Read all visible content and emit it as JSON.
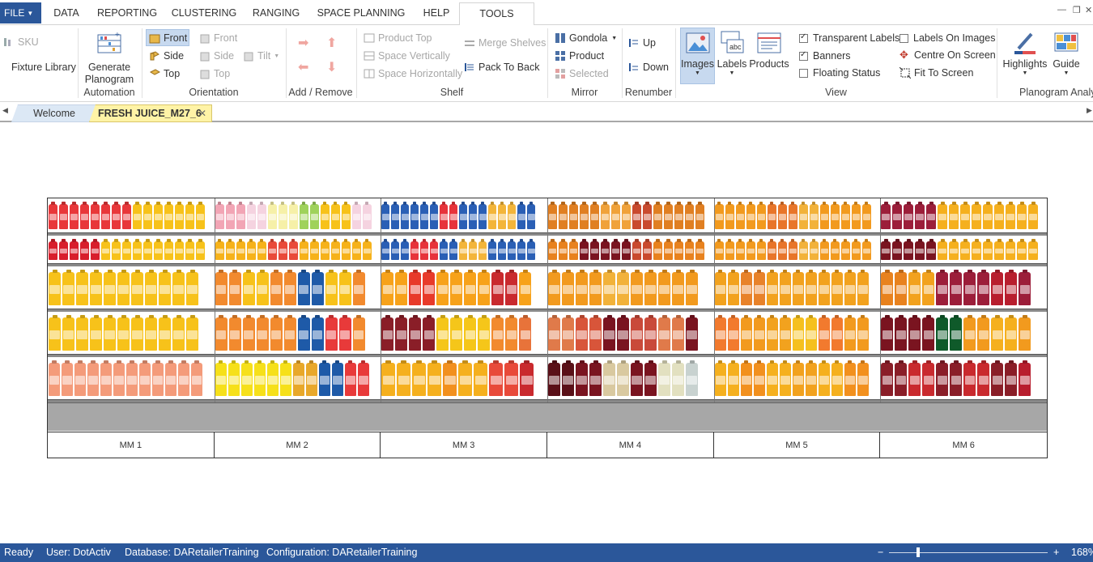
{
  "menu": {
    "file": "FILE",
    "tabs": [
      "DATA",
      "REPORTING",
      "CLUSTERING",
      "RANGING",
      "SPACE PLANNING",
      "HELP",
      "TOOLS"
    ],
    "active_tab": "TOOLS"
  },
  "ribbon": {
    "misc": {
      "sku": "SKU",
      "fixture_library": "Fixture Library"
    },
    "automation": {
      "generate_line1": "Generate",
      "generate_line2": "Planogram",
      "label": "Automation"
    },
    "orientation": {
      "front": "Front",
      "side": "Side",
      "top": "Top",
      "front2": "Front",
      "side2": "Side",
      "top2": "Top",
      "tilt": "Tilt",
      "label": "Orientation"
    },
    "add_remove": {
      "label": "Add / Remove"
    },
    "shelf": {
      "product_top": "Product Top",
      "space_vertically": "Space Vertically",
      "space_horizontally": "Space Horizontally",
      "merge_shelves": "Merge Shelves",
      "pack_to_back": "Pack To Back",
      "label": "Shelf"
    },
    "mirror": {
      "gondola": "Gondola",
      "product": "Product",
      "selected": "Selected",
      "label": "Mirror"
    },
    "renumber": {
      "up": "Up",
      "down": "Down",
      "label": "Renumber"
    },
    "view": {
      "images": "Images",
      "labels": "Labels",
      "products": "Products",
      "transparent_labels": "Transparent Labels",
      "banners": "Banners",
      "floating_status": "Floating Status",
      "labels_on_images": "Labels On Images",
      "centre_on_screen": "Centre On Screen",
      "fit_to_screen": "Fit To Screen",
      "transparent_labels_checked": true,
      "banners_checked": true,
      "floating_status_checked": false,
      "labels_on_images_checked": false,
      "label": "View"
    },
    "analysis": {
      "highlights": "Highlights",
      "guide": "Guide",
      "label": "Planogram Analy"
    }
  },
  "doc_tabs": {
    "welcome": "Welcome",
    "active": "FRESH JUICE_M27_6"
  },
  "planogram": {
    "bays": [
      "MM 1",
      "MM 2",
      "MM 3",
      "MM 4",
      "MM 5",
      "MM 6"
    ],
    "shelves": [
      {
        "palette": [
          [
            "#e8373a",
            "#e8373a",
            "#e8373a",
            "#f7c21a",
            "#f7c21a",
            "#f7c21a"
          ],
          [
            "#f2a5b5",
            "#f5d3e0",
            "#f6f0a8",
            "#9fd25b",
            "#f7c21a",
            "#f5d3e0"
          ],
          [
            "#2a5fb5",
            "#2a5fb5",
            "#e7333b",
            "#2a5fb5",
            "#f3b53a",
            "#2a5fb5"
          ],
          [
            "#e07f22",
            "#e07f22",
            "#f0a23a",
            "#c94a2e",
            "#e07f22",
            "#e07f22"
          ],
          [
            "#f29a1e",
            "#f29a1e",
            "#e8752a",
            "#f2b23a",
            "#f29a1e",
            "#f29a1e"
          ],
          [
            "#9c1e3a",
            "#9c1e3a",
            "#f5b01e",
            "#f5b01e",
            "#f5b01e",
            "#f5b01e"
          ]
        ]
      },
      {
        "palette": [
          [
            "#d81e2c",
            "#d81e2c",
            "#f7c21a",
            "#f7c21a",
            "#f7c21a",
            "#f7c21a"
          ],
          [
            "#f6b21a",
            "#f6b21a",
            "#e94a3a",
            "#f6b21a",
            "#f6b21a",
            "#f6b21a"
          ],
          [
            "#2a5fb5",
            "#e7333b",
            "#2a5fb5",
            "#f3b53a",
            "#2a5fb5",
            "#2a5fb5"
          ],
          [
            "#e8821e",
            "#7a1420",
            "#7a1420",
            "#c94a2e",
            "#e8821e",
            "#e8821e"
          ],
          [
            "#f29a1e",
            "#f29a1e",
            "#e8752a",
            "#f2b23a",
            "#f29a1e",
            "#f29a1e"
          ],
          [
            "#7a1420",
            "#7a1420",
            "#f5b01e",
            "#f5b01e",
            "#f5b01e",
            "#f5b01e"
          ]
        ]
      },
      {
        "palette": [
          [
            "#f7c21a",
            "#f7c21a",
            "#f7c21a",
            "#f7c21a",
            "#f7c21a",
            "#f7c21a"
          ],
          [
            "#f28a2e",
            "#f7c21a",
            "#f28a2e",
            "#1e5aa8",
            "#f7c21a",
            "#f28a2e"
          ],
          [
            "#f7a21a",
            "#e83a2a",
            "#f7a21a",
            "#f7a21a",
            "#c92a2e",
            "#f7a21a"
          ],
          [
            "#f29a1e",
            "#f29a1e",
            "#f2b23a",
            "#f29a1e",
            "#f29a1e",
            "#f29a1e"
          ],
          [
            "#f2a21e",
            "#e8822a",
            "#f2a21e",
            "#f2a21e",
            "#f2a21e",
            "#f2a21e"
          ],
          [
            "#e8821e",
            "#f2a21e",
            "#9c1e3a",
            "#9c1e3a",
            "#b81e2e",
            "#9c1e3a"
          ]
        ]
      },
      {
        "palette": [
          [
            "#f7c21a",
            "#f7c21a",
            "#f7c21a",
            "#f7c21a",
            "#f7c21a",
            "#f7c21a"
          ],
          [
            "#f28a2e",
            "#f28a2e",
            "#f28a2e",
            "#1e5aa8",
            "#e83a3a",
            "#f28a2e"
          ],
          [
            "#8a1e28",
            "#8a1e28",
            "#f5c61a",
            "#f5c61a",
            "#f28a2e",
            "#e8733a"
          ],
          [
            "#e07a4a",
            "#d8553a",
            "#7a1420",
            "#c94a3a",
            "#e07a4a",
            "#7a1420"
          ],
          [
            "#f27a2e",
            "#f29a1e",
            "#f2a21e",
            "#f5c01e",
            "#f27a2e",
            "#f29a1e"
          ],
          [
            "#7a1420",
            "#7a1420",
            "#0f5a2a",
            "#f29a1e",
            "#f5b01e",
            "#f29a1e"
          ]
        ]
      },
      {
        "palette": [
          [
            "#f49b7a",
            "#f49b7a",
            "#f49b7a",
            "#f49b7a",
            "#f49b7a",
            "#f49b7a"
          ],
          [
            "#f6e01a",
            "#f6e01a",
            "#f6e01a",
            "#e8a82a",
            "#1e5aa8",
            "#e83a3a"
          ],
          [
            "#f5b01e",
            "#f5b01e",
            "#f2901e",
            "#f5b01e",
            "#e84a3a",
            "#c92a2e"
          ],
          [
            "#5a1018",
            "#7a1420",
            "#d9c9a0",
            "#7a1420",
            "#e2e0c0",
            "#c8d2d0"
          ],
          [
            "#f5b01e",
            "#f2901e",
            "#f5b01e",
            "#f2a21e",
            "#f5b01e",
            "#f2901e"
          ],
          [
            "#8a1e28",
            "#c92a2e",
            "#8a1e28",
            "#c92a2e",
            "#8a1e28",
            "#b81e2e"
          ]
        ]
      }
    ]
  },
  "status": {
    "ready": "Ready",
    "user": "User: DotActiv",
    "database": "Database: DARetailerTraining",
    "configuration": "Configuration: DARetailerTraining",
    "zoom_minus": "−",
    "zoom_plus": "+",
    "zoom": "168%"
  },
  "colors": {
    "accent": "#2b579a",
    "active_tab": "#fff3a6",
    "plinth": "#a7a7a7"
  }
}
